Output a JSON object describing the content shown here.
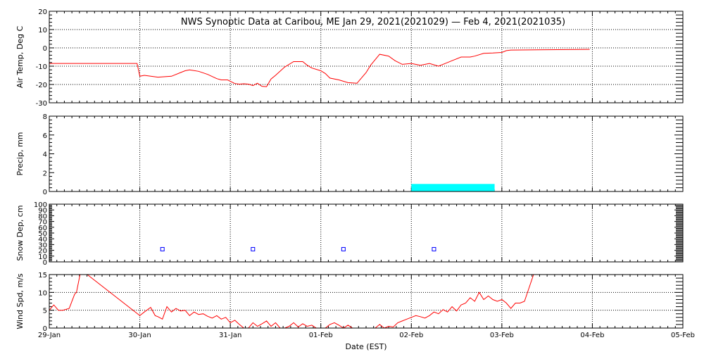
{
  "chart_data": {
    "title": "NWS Synoptic Data at Caribou, ME   Jan 29, 2021(2021029) — Feb  4, 2021(2021035)",
    "xlabel": "Date (EST)",
    "x_ticks": [
      "29-Jan",
      "30-Jan",
      "31-Jan",
      "01-Feb",
      "02-Feb",
      "03-Feb",
      "04-Feb",
      "05-Feb"
    ],
    "xlim_days": [
      0,
      7
    ],
    "vertical_grid": "dotted at each day",
    "panels": [
      {
        "id": "air-temp",
        "type": "line",
        "ylabel": "Air Temp, Deg C",
        "ylim": [
          -30,
          20
        ],
        "yticks": [
          -30,
          -20,
          -10,
          0,
          10,
          20
        ],
        "horizontal_grid": [
          -20,
          -10,
          0,
          10
        ],
        "color": "#ff0000",
        "series": [
          {
            "x": [
              0.0,
              0.5,
              0.9,
              0.97,
              1.0,
              1.05,
              1.2,
              1.35,
              1.5,
              1.55,
              1.65,
              1.75,
              1.85,
              1.9,
              1.97,
              2.05,
              2.1,
              2.15,
              2.2,
              2.25,
              2.3,
              2.35,
              2.4,
              2.45,
              2.5,
              2.6,
              2.7,
              2.8,
              2.85,
              2.9,
              3.0,
              3.05,
              3.1,
              3.2,
              3.3,
              3.4,
              3.5,
              3.55,
              3.65,
              3.75,
              3.82,
              3.9,
              4.0,
              4.1,
              4.2,
              4.3,
              4.4,
              4.45,
              4.55,
              4.65,
              4.7,
              4.8,
              4.9,
              5.0,
              5.05,
              5.1,
              5.5,
              5.97
            ],
            "y": [
              -8.5,
              -8.5,
              -8.5,
              -8.5,
              -15.5,
              -15,
              -16,
              -15.5,
              -12.5,
              -12,
              -12.8,
              -14.5,
              -16.8,
              -17.5,
              -17.5,
              -19.5,
              -19.8,
              -19.6,
              -19.8,
              -20.6,
              -19.3,
              -21,
              -21.2,
              -17,
              -15,
              -10.5,
              -7.5,
              -7.5,
              -9.5,
              -11,
              -12.5,
              -14,
              -16.5,
              -17.5,
              -19,
              -19.3,
              -13.5,
              -9.5,
              -3.5,
              -4.5,
              -7,
              -9,
              -8.5,
              -9.5,
              -8.5,
              -10,
              -8,
              -7,
              -5,
              -5,
              -4.5,
              -3,
              -2.8,
              -2.5,
              -1.5,
              -1.2,
              -1,
              -0.8
            ]
          }
        ]
      },
      {
        "id": "precip",
        "type": "bar",
        "ylabel": "Precip, mm",
        "ylim": [
          0,
          8
        ],
        "yticks": [
          0,
          2,
          4,
          6,
          8
        ],
        "horizontal_grid": [],
        "color": "#00ffff",
        "bars": [
          {
            "x_start": 4.0,
            "x_end": 4.92,
            "value": 0.8
          }
        ]
      },
      {
        "id": "snow-depth",
        "type": "scatter",
        "ylabel": "Snow Dep, cm",
        "ylim": [
          0,
          100
        ],
        "yticks": [
          0,
          10,
          20,
          30,
          40,
          50,
          60,
          70,
          80,
          90,
          100
        ],
        "horizontal_grid": [],
        "color": "#0000ff",
        "points": [
          {
            "x": 1.25,
            "y": 22
          },
          {
            "x": 2.25,
            "y": 22
          },
          {
            "x": 3.25,
            "y": 22
          },
          {
            "x": 4.25,
            "y": 22
          }
        ]
      },
      {
        "id": "wind-speed",
        "type": "line",
        "ylabel": "Wind Spd, m/s",
        "ylim": [
          0,
          15
        ],
        "yticks": [
          0,
          5,
          10,
          15
        ],
        "horizontal_grid": [
          5,
          10
        ],
        "color": "#ff0000",
        "series": [
          {
            "x": [
              0.0,
              0.05,
              0.1,
              0.15,
              0.22,
              0.28,
              0.3,
              0.34,
              0.37,
              0.4,
              0.42,
              1.0,
              1.05,
              1.12,
              1.17,
              1.2,
              1.25,
              1.3,
              1.35,
              1.4,
              1.45,
              1.5,
              1.55,
              1.6,
              1.65,
              1.7,
              1.75,
              1.8,
              1.85,
              1.9,
              1.95,
              2.0,
              2.05,
              2.1,
              2.15,
              2.2,
              2.25,
              2.3,
              2.35,
              2.4,
              2.45,
              2.5,
              2.55,
              2.6,
              2.65,
              2.7,
              2.75,
              2.8,
              2.85,
              2.9,
              2.95,
              3.0,
              3.05,
              3.1,
              3.15,
              3.2,
              3.25,
              3.3,
              3.35,
              3.4,
              3.45,
              3.5,
              3.55,
              3.6,
              3.65,
              3.7,
              3.75,
              3.8,
              3.85,
              3.9,
              3.95,
              4.0,
              4.05,
              4.1,
              4.15,
              4.2,
              4.25,
              4.3,
              4.35,
              4.4,
              4.45,
              4.5,
              4.55,
              4.6,
              4.65,
              4.7,
              4.75,
              4.8,
              4.85,
              4.9,
              4.95,
              5.0,
              5.05,
              5.1,
              5.15,
              5.2,
              5.25,
              5.35
            ],
            "y": [
              5,
              6.5,
              5,
              5,
              5.5,
              9.5,
              10,
              15,
              15,
              15,
              15,
              3.5,
              4.5,
              5.8,
              3.5,
              3.2,
              2.5,
              6,
              4.5,
              5.5,
              4.8,
              5,
              3.5,
              4.5,
              3.8,
              4,
              3.3,
              2.8,
              3.5,
              2.5,
              3,
              1.5,
              2.2,
              1,
              0,
              0,
              1.5,
              0.5,
              1.2,
              2,
              0.5,
              1.5,
              0,
              0,
              0.5,
              1.5,
              0.3,
              1.2,
              0.5,
              0.8,
              0,
              0,
              0,
              1,
              1.5,
              0.8,
              0,
              0.8,
              0,
              0,
              0,
              0,
              0,
              0,
              1,
              0,
              0.5,
              0.3,
              1.5,
              2,
              2.5,
              3,
              3.5,
              3.2,
              2.8,
              3.5,
              4.5,
              4,
              5.2,
              4.5,
              6,
              4.8,
              6.5,
              7,
              8.5,
              7.5,
              10,
              8,
              9,
              8,
              7.5,
              8,
              7,
              5.5,
              7,
              7,
              7.5,
              15
            ]
          }
        ]
      }
    ]
  }
}
